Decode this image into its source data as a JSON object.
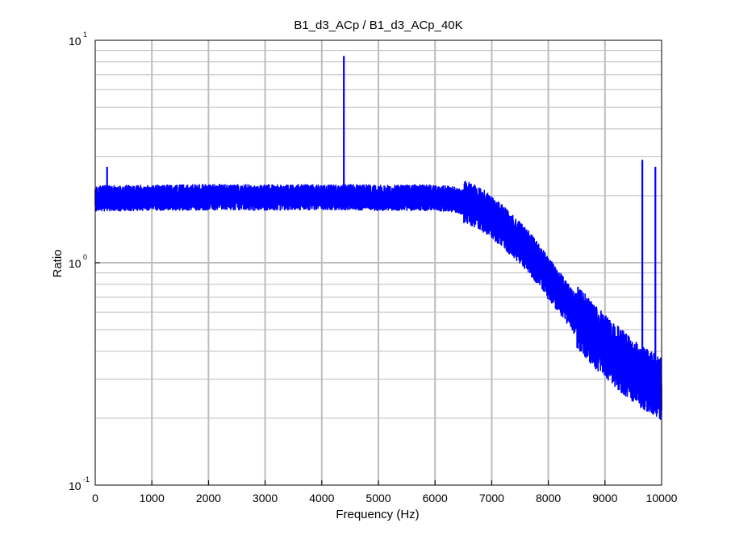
{
  "chart_data": {
    "type": "line",
    "title": "B1_d3_ACp / B1_d3_ACp_40K",
    "xlabel": "Frequency (Hz)",
    "ylabel": "Ratio",
    "xlim": [
      0,
      10000
    ],
    "ylim": [
      0.1,
      10
    ],
    "yscale": "log",
    "grid": true,
    "x_ticks": [
      "0",
      "1000",
      "2000",
      "3000",
      "4000",
      "5000",
      "6000",
      "7000",
      "8000",
      "9000",
      "10000"
    ],
    "y_ticks": [
      {
        "base": "10",
        "exp": "-1",
        "value": 0.1
      },
      {
        "base": "10",
        "exp": "0",
        "value": 1
      },
      {
        "base": "10",
        "exp": "1",
        "value": 10
      }
    ],
    "colors": {
      "series": "#0000ff",
      "grid": "#bdbdbd",
      "axes": "#000000"
    },
    "series": [
      {
        "x": [
          0,
          100,
          200,
          300,
          500,
          1000,
          1500,
          2000,
          2500,
          3000,
          3500,
          4000,
          4300,
          4500,
          5000,
          5500,
          6000,
          6300,
          6600,
          6800,
          7000,
          7200,
          7400,
          7600,
          7800,
          8000,
          8200,
          8400,
          8600,
          8800,
          9000,
          9200,
          9400,
          9600,
          9800,
          10000
        ],
        "y": [
          1.95,
          1.95,
          1.95,
          1.95,
          1.95,
          1.96,
          1.96,
          1.97,
          1.97,
          1.96,
          1.97,
          1.97,
          1.97,
          1.97,
          1.96,
          1.96,
          1.96,
          1.93,
          1.85,
          1.75,
          1.6,
          1.45,
          1.3,
          1.16,
          1.0,
          0.85,
          0.73,
          0.62,
          0.54,
          0.47,
          0.42,
          0.38,
          0.34,
          0.31,
          0.29,
          0.27
        ],
        "spikes": [
          {
            "x": 210,
            "y": 2.7
          },
          {
            "x": 4390,
            "y": 8.5
          },
          {
            "x": 9660,
            "y": 2.9
          },
          {
            "x": 9890,
            "y": 2.7
          }
        ]
      }
    ]
  }
}
